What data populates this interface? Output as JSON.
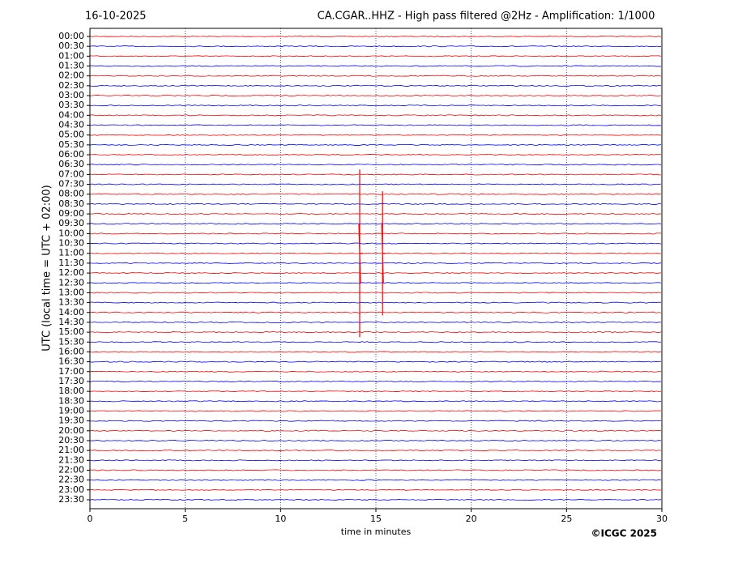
{
  "chart_data": {
    "type": "helicorder",
    "date": "16-10-2025",
    "title": "CA.CGAR..HHZ - High pass filtered @2Hz - Amplification: 1/1000",
    "y_label": "UTC (local time = UTC + 02:00)",
    "x_label": "time in minutes",
    "credit": "©ICGC 2025",
    "categories": [
      "00:00",
      "00:30",
      "01:00",
      "01:30",
      "02:00",
      "02:30",
      "03:00",
      "03:30",
      "04:00",
      "04:30",
      "05:00",
      "05:30",
      "06:00",
      "06:30",
      "07:00",
      "07:30",
      "08:00",
      "08:30",
      "09:00",
      "09:30",
      "10:00",
      "10:30",
      "11:00",
      "11:30",
      "12:00",
      "12:30",
      "13:00",
      "13:30",
      "14:00",
      "14:30",
      "15:00",
      "15:30",
      "16:00",
      "16:30",
      "17:00",
      "17:30",
      "18:00",
      "18:30",
      "19:00",
      "19:30",
      "20:00",
      "20:30",
      "21:00",
      "21:30",
      "22:00",
      "22:30",
      "23:00",
      "23:30"
    ],
    "colors": [
      "#ff0000",
      "#0000ff"
    ],
    "xlim": [
      0,
      30
    ],
    "xticks": [
      0,
      5,
      10,
      15,
      20,
      25,
      30
    ],
    "grid": true,
    "events": [
      {
        "time": 14.15,
        "row": "11:00",
        "span": 8.5
      },
      {
        "time": 15.35,
        "row": "11:00",
        "span": 6.3
      }
    ]
  }
}
